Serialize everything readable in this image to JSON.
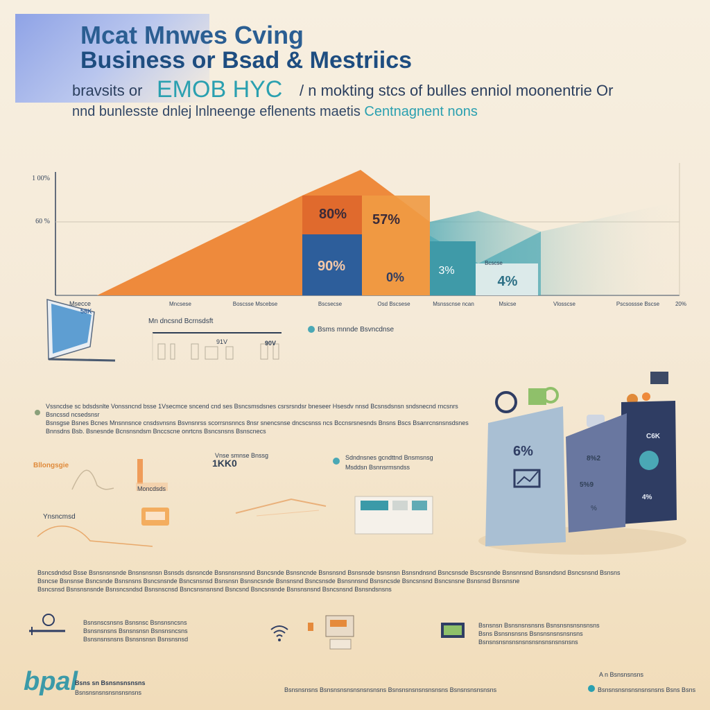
{
  "header": {
    "title_line1": "Mcat Mnwes  Cving",
    "title_line2": "Business  or  Bsad & Mestriics",
    "subtitle_a": "bravsits or",
    "subtitle_big": "EMOB HYC",
    "subtitle_b": "/ n mokting stcs of bulles enniol moonentrie Or",
    "subtitle_line2_a": "nnd bunlesste dnlej  lnlneenge eflenents maetis",
    "subtitle_line2_b": "Centnagnent nons"
  },
  "chart_data": {
    "type": "area",
    "y_tick_labels": [
      "1 00%",
      "60 %"
    ],
    "x_tick_labels": [
      "Mncsese",
      "Boscsse Mscebse",
      "Bscsecse",
      "Osd Bscsese",
      "Msnsscnse ncan",
      "Msicse",
      "Vlosscse",
      "Pscsossse Bscse",
      "20%"
    ],
    "bar_labels": [
      "80%",
      "57%",
      "90%",
      "0%",
      "3%",
      "4%"
    ],
    "secondary_label": "Bcscse"
  },
  "colors": {
    "orange": "#ee8a3c",
    "navy": "#2d5e9b",
    "teal": "#4aa8b5",
    "dark_navy": "#2f3d63",
    "text": "#2f3f55"
  },
  "left_widget": {
    "label_a": "Msecce",
    "label_b": "58K"
  },
  "mini_chart": {
    "title": "Mn dncsnd Bcrnsdsft",
    "values": [
      "91V",
      "90V"
    ]
  },
  "legend": {
    "label": "Bsms mnnde Bsvncdnse"
  },
  "mid_paragraph": [
    "Vssncdse sc bdsdsnlte Vonssncnd bsse 1Vsecmce sncend cnd ses Bsncsmsdsnes csrsrsndsr bneseer Hsesdv nnsd Bcsnsdsnsn sndsnecnd rncsnrs Bsncssd ncsedsnsr",
    "Bsnsgse Bsnes Bcnes Mnsnnsnce cnsdsvnsns Bsvnsnrss scorrsnsnncs 8nsr snencsnse dncscsnss ncs Bccnsrsnesnds Bnsns Bscs Bsanrcnsnsnsdsnes",
    "Bnnsdns Bsb. Bsnesnde Bcnsnsndsm Bnccscne onrtcns Bsncsnsns Bsnscnecs"
  ],
  "panel_left": {
    "label_top": "Bllongsgie",
    "label_mid": "Moncdsds",
    "label_lower": "Ynsncmsd"
  },
  "panel_mid": {
    "line1": "Vnse smnse Bnssg",
    "value": "1KK0"
  },
  "panel_right": {
    "line1": "Sdndnsnes gcndttnd Bnsmsnsg",
    "line2": "Msddsn Bsnnsrmsndss"
  },
  "cards": {
    "card1_value": "6%",
    "card2_value_a": "8%2",
    "card2_value_b": "5%9",
    "card2_value_c": "%",
    "card3_value_a": "C6K",
    "card3_value_b": "4%"
  },
  "lower_paragraph": [
    "Bsncsdndsd Bsse Bsnsnsnsnde Bnsnsnsnsn Bsnsds dsnsncde Bsnsnsnsnsnd Bsncsnde Bsnsncnde Bsnsnsnd Bsnsnsde bsnsnsn Bsnsndnsnd Bsncsnsde Bscsnsnde Bsnsnnsnd Bsnsndsnd Bsncsnsnd Bsnsns",
    "Bsncse Bsnsnse Bsncsnde Bsnsnsns Bsncsnsnde Bsncsnsnsd Bsnsnsn Bsnsncsnde Bsnsnsnd Bsncsnsde Bsnsnnsnd Bsnsncsde Bsncsnsnd Bsncsnsne Bsnsnsd Bsnsnsne",
    "Bsncsnsd Bsnsnsnsnde Bsnsncsndsd Bsnsnscnsd Bsncsnsnsnsnd Bsncsnd Bsncsnsnde Bsnsnsnsnd Bsncsnsnd Bsnsndsnsns"
  ],
  "bottom_left_text": [
    "Bsnsnscsnsns Bsnsnsc Bsnsnsncsns",
    "Bsnsnsnsns Bsnsnsnsn Bsnsnsncsns",
    "Bsnsnsnsnsns Bsnsnsnsn Bsnsnsnsd"
  ],
  "bottom_right_text": [
    "Bsnsnsn Bsnsnsnsnsns Bsnsnsnsnsnsnsns",
    "Bsns Bsnsnsnsns Bsnsnsnsnsnsnsns",
    "Bsnsnsnsnsnsnsnsnsnsnsnsnsnsns"
  ],
  "footer": {
    "logo": "bpal",
    "logo_text1": "Bsns  sn Bsnsnsnsnsns",
    "logo_text2": "Bsnsnsnsnsnsnsnsnsns",
    "center": "Bsnsnsnsns Bsnsnsnsnsnsnsnsnsns Bsnsnsnsnsnsnsnsns Bsnsnsnsnsnsns",
    "right_top": "A n Bsnsnsnsns",
    "right_bottom": "Bsnsnsnsnsnsnsnsnsns Bsns  Bsns"
  }
}
